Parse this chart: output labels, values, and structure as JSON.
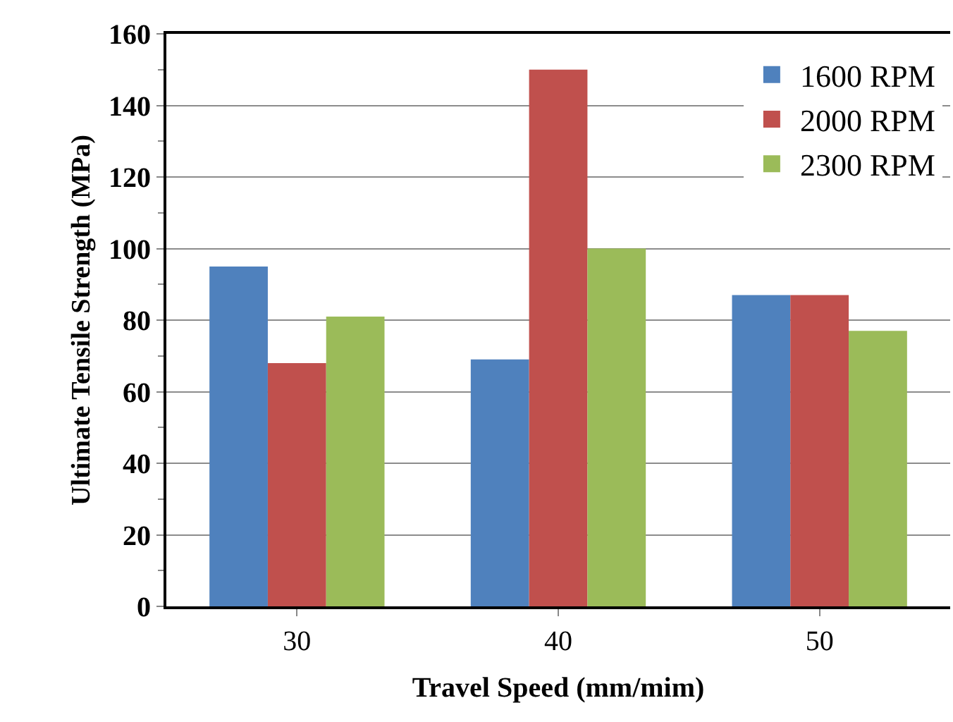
{
  "chart_data": {
    "type": "bar",
    "xlabel": "Travel Speed (mm/mim)",
    "ylabel": "Ultimate Tensile Strength (MPa)",
    "categories": [
      "30",
      "40",
      "50"
    ],
    "series": [
      {
        "name": "1600 RPM",
        "color": "#4f81bd",
        "values": [
          95,
          69,
          87
        ]
      },
      {
        "name": "2000 RPM",
        "color": "#c0504d",
        "values": [
          68,
          150,
          87
        ]
      },
      {
        "name": "2300 RPM",
        "color": "#9bbb59",
        "values": [
          81,
          100,
          77
        ]
      }
    ],
    "ylim": [
      0,
      160
    ],
    "yticks": [
      0,
      20,
      40,
      60,
      80,
      100,
      120,
      140,
      160
    ],
    "grid": "y",
    "legend": "top right"
  }
}
